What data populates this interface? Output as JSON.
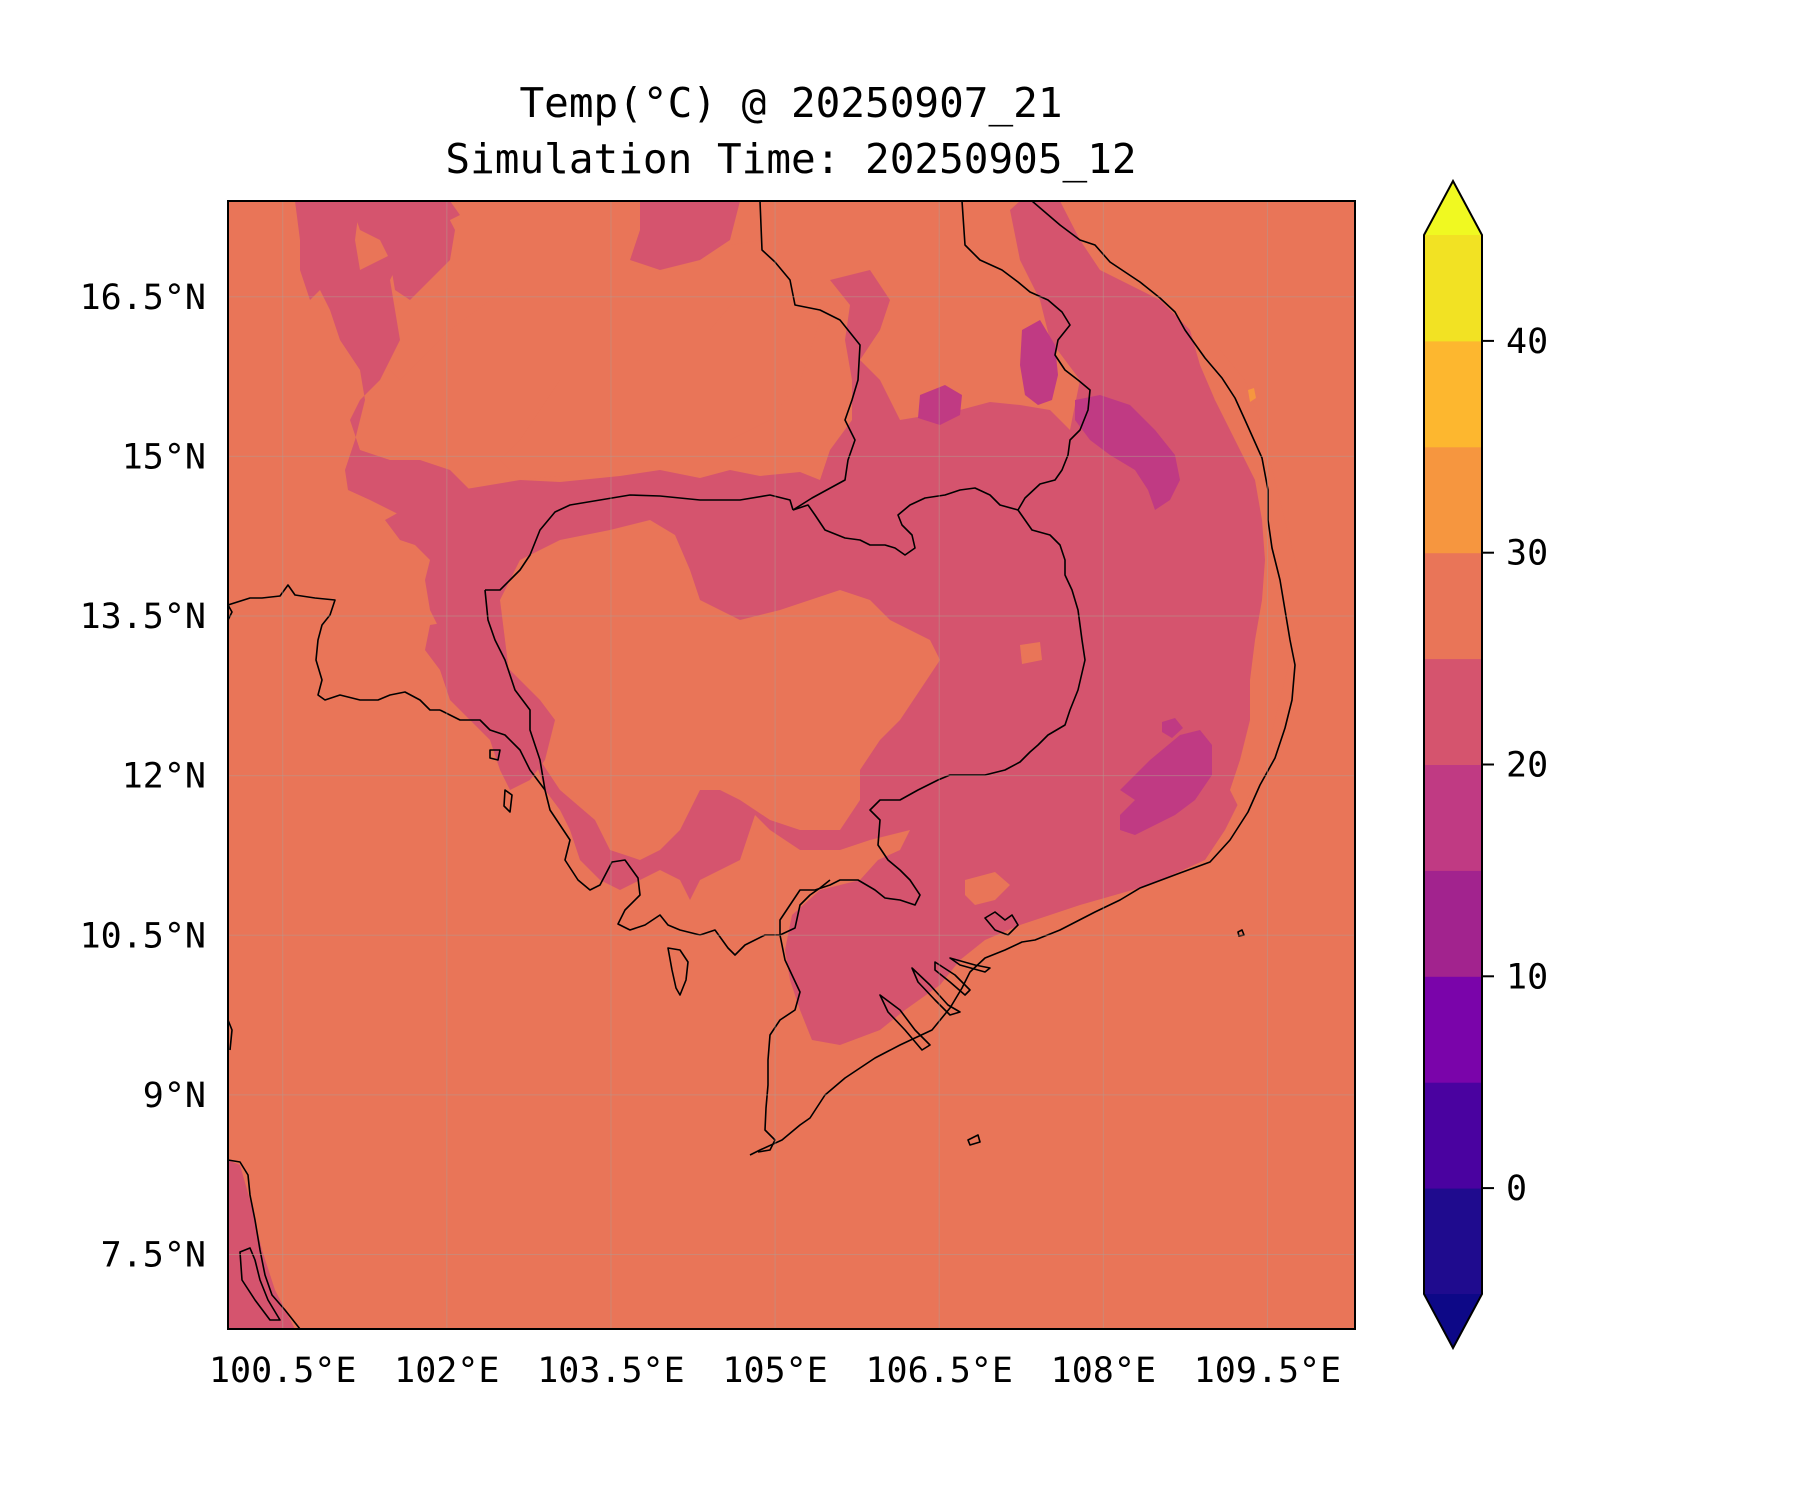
{
  "title": {
    "line1": "Temp(°C) @ 20250907_21",
    "line2": "Simulation Time: 20250905_12"
  },
  "map": {
    "lon_range": [
      100,
      110.3
    ],
    "lat_range": [
      6.8,
      17.4
    ],
    "x_ticks": [
      {
        "value": 100.5,
        "label": "100.5°E"
      },
      {
        "value": 102.0,
        "label": "102°E"
      },
      {
        "value": 103.5,
        "label": "103.5°E"
      },
      {
        "value": 105.0,
        "label": "105°E"
      },
      {
        "value": 106.5,
        "label": "106.5°E"
      },
      {
        "value": 108.0,
        "label": "108°E"
      },
      {
        "value": 109.5,
        "label": "109.5°E"
      }
    ],
    "y_ticks": [
      {
        "value": 16.5,
        "label": "16.5°N"
      },
      {
        "value": 15.0,
        "label": "15°N"
      },
      {
        "value": 13.5,
        "label": "13.5°N"
      },
      {
        "value": 12.0,
        "label": "12°N"
      },
      {
        "value": 10.5,
        "label": "10.5°N"
      },
      {
        "value": 9.0,
        "label": "9°N"
      },
      {
        "value": 7.5,
        "label": "7.5°N"
      }
    ],
    "grid": true,
    "background_color": "#e97558"
  },
  "colorbar": {
    "levels": [
      -5,
      0,
      5,
      10,
      15,
      20,
      25,
      30,
      35,
      40,
      45
    ],
    "colors": [
      "#1f0b8e",
      "#4a02a0",
      "#7a04aa",
      "#a2238e",
      "#c03a83",
      "#d5546e",
      "#e97558",
      "#f6963f",
      "#fdb72f",
      "#f2e223"
    ],
    "under_color": "#0d0887",
    "over_color": "#f0f921",
    "extend": "both",
    "ticks": [
      {
        "value": 0,
        "label": "0"
      },
      {
        "value": 10,
        "label": "10"
      },
      {
        "value": 20,
        "label": "20"
      },
      {
        "value": 30,
        "label": "30"
      },
      {
        "value": 40,
        "label": "40"
      }
    ]
  },
  "chart_data": {
    "type": "heatmap",
    "variable": "Temp(°C)",
    "valid_time": "20250907_21",
    "simulation_time": "20250905_12",
    "x_range": [
      100,
      110.3
    ],
    "y_range": [
      6.8,
      17.4
    ],
    "dominant_band": [
      25,
      30
    ],
    "regions": [
      {
        "band": [
          20,
          25
        ],
        "area": "interior Cambodia, southern Laos, central Vietnam highlands, Mekong delta"
      },
      {
        "band": [
          15,
          20
        ],
        "area": "central highlands of Vietnam near 107.5°E 12°N and 108°E 15°N"
      },
      {
        "band": [
          30,
          35
        ],
        "area": "small spot near 109°E 15.3°N"
      }
    ]
  }
}
